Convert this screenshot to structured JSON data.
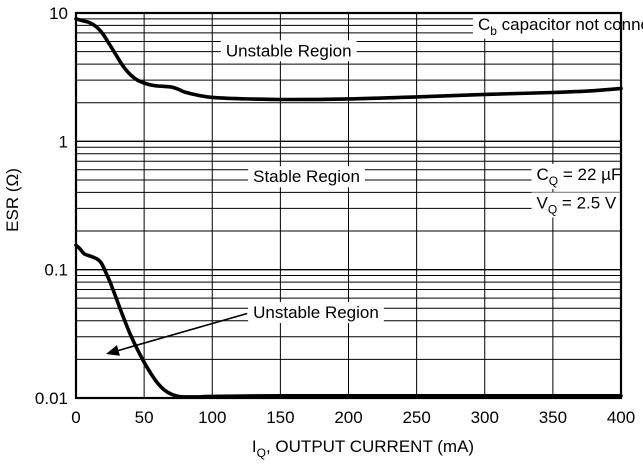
{
  "chart_data": {
    "type": "line",
    "title": "",
    "xlabel": {
      "main": "I",
      "sub": "Q",
      "rest": ", OUTPUT CURRENT (mA)"
    },
    "ylabel": "ESR (Ω)",
    "x_ticks": [
      "0",
      "50",
      "100",
      "150",
      "200",
      "250",
      "300",
      "350",
      "400"
    ],
    "x_tick_values": [
      0,
      50,
      100,
      150,
      200,
      250,
      300,
      350,
      400
    ],
    "y_ticks": [
      "10",
      "1",
      "0.1",
      "0.01"
    ],
    "y_tick_values": [
      10,
      1,
      0.1,
      0.01
    ],
    "xlim": [
      0,
      400
    ],
    "ylim": [
      0.01,
      10
    ],
    "y_scale": "log",
    "grid": true,
    "series": [
      {
        "name": "",
        "color": "#000000",
        "x": [
          0,
          5,
          10,
          15,
          20,
          25,
          30,
          35,
          40,
          45,
          50,
          55,
          60,
          65,
          70,
          75,
          80,
          90,
          100,
          120,
          150,
          200,
          250,
          300,
          350,
          380,
          400
        ],
        "y": [
          9.0,
          8.7,
          8.4,
          7.8,
          6.8,
          5.6,
          4.6,
          3.8,
          3.3,
          3.0,
          2.85,
          2.75,
          2.7,
          2.68,
          2.65,
          2.55,
          2.42,
          2.28,
          2.2,
          2.15,
          2.12,
          2.14,
          2.22,
          2.32,
          2.4,
          2.48,
          2.58
        ]
      },
      {
        "name": "",
        "color": "#000000",
        "x": [
          0,
          3,
          6,
          10,
          15,
          18,
          20,
          25,
          30,
          35,
          40,
          45,
          50,
          55,
          60,
          65,
          70,
          75,
          80,
          90,
          100,
          150,
          200,
          250,
          300,
          350,
          400
        ],
        "y": [
          0.155,
          0.145,
          0.133,
          0.128,
          0.122,
          0.115,
          0.105,
          0.08,
          0.058,
          0.042,
          0.031,
          0.024,
          0.019,
          0.0155,
          0.013,
          0.0115,
          0.0107,
          0.0103,
          0.0102,
          0.0102,
          0.0103,
          0.0104,
          0.0104,
          0.0104,
          0.0104,
          0.0104,
          0.0104
        ]
      }
    ],
    "annotations": [
      {
        "id": "unstable_top",
        "text": "Unstable Region",
        "x": 110,
        "y": 4.6
      },
      {
        "id": "stable",
        "text": "Stable Region",
        "x": 130,
        "y": 0.48
      },
      {
        "id": "unstable_bottom",
        "text": "Unstable Region",
        "x": 130,
        "y": 0.042,
        "arrow_to": {
          "x": 22,
          "y": 0.022
        }
      },
      {
        "id": "cb_note",
        "main": "C",
        "sub": "b",
        "rest": " capacitor not connected",
        "x": 295,
        "y": 7.4
      },
      {
        "id": "cq",
        "main": "C",
        "sub": "Q",
        "rest": " = 22 µF",
        "x": 338,
        "y": 0.5
      },
      {
        "id": "vq",
        "main": "V",
        "sub": "Q",
        "rest": " = 2.5 V",
        "x": 338,
        "y": 0.3
      }
    ]
  }
}
